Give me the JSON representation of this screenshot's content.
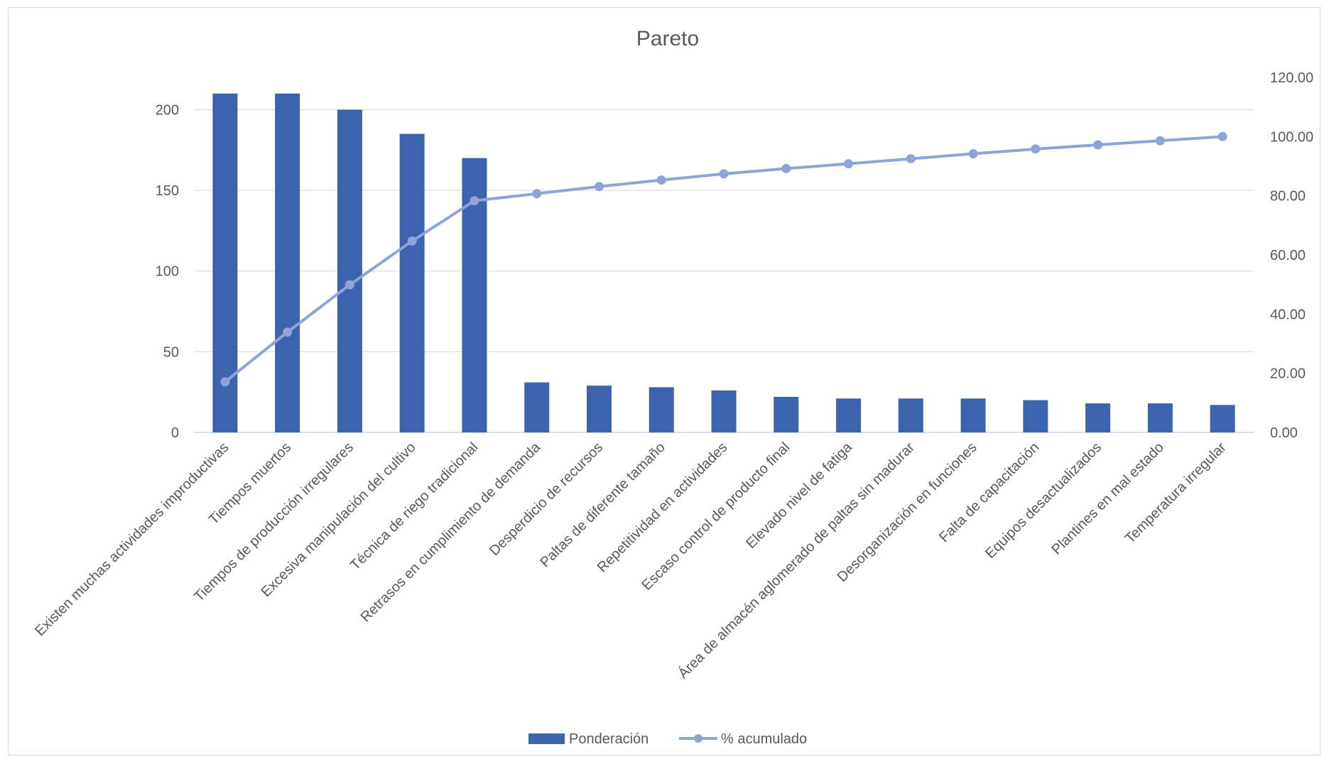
{
  "chart_data": {
    "type": "bar",
    "title": "Pareto",
    "xlabel": "",
    "ylabel": "",
    "categories": [
      "Existen muchas actividades improductivas",
      "Tiempos muertos",
      "Tiempos de producción irregulares",
      "Excesiva manipulación del cultivo",
      "Técnica de riego tradicional",
      "Retrasos en cumplimiento de demanda",
      "Desperdicio de recursos",
      "Paltas de diferente tamaño",
      "Repetitividad en actividades",
      "Escaso control de producto final",
      "Elevado nivel de fatiga",
      "Área de almacén aglomerado de paltas sin madurar",
      "Desorganización en funciones",
      "Falta de capacitación",
      "Equipos desactualizados",
      "Plantines en mal estado",
      "Temperatura irregular"
    ],
    "series": [
      {
        "name": "Ponderación",
        "type": "bar",
        "axis": "primary",
        "color": "#3c63ae",
        "values": [
          210,
          210,
          200,
          185,
          170,
          31,
          29,
          28,
          26,
          22,
          21,
          21,
          21,
          20,
          18,
          18,
          17
        ]
      },
      {
        "name": "% acumulado",
        "type": "line",
        "axis": "secondary",
        "color": "#8ea4d9",
        "values": [
          17.1,
          33.9,
          49.9,
          64.7,
          78.3,
          80.7,
          83.1,
          85.3,
          87.4,
          89.2,
          90.8,
          92.5,
          94.2,
          95.8,
          97.2,
          98.6,
          100.0
        ]
      }
    ],
    "y_primary": {
      "ylim": [
        0,
        220
      ],
      "ticks": [
        0,
        50,
        100,
        150,
        200
      ],
      "tick_labels": [
        "0",
        "50",
        "100",
        "150",
        "200"
      ]
    },
    "y_secondary": {
      "ylim": [
        0,
        120
      ],
      "ticks": [
        0,
        20,
        40,
        60,
        80,
        100,
        120
      ],
      "tick_labels": [
        "0.00",
        "20.00",
        "40.00",
        "60.00",
        "80.00",
        "100.00",
        "120.00"
      ]
    },
    "grid": true,
    "legend_position": "bottom"
  }
}
